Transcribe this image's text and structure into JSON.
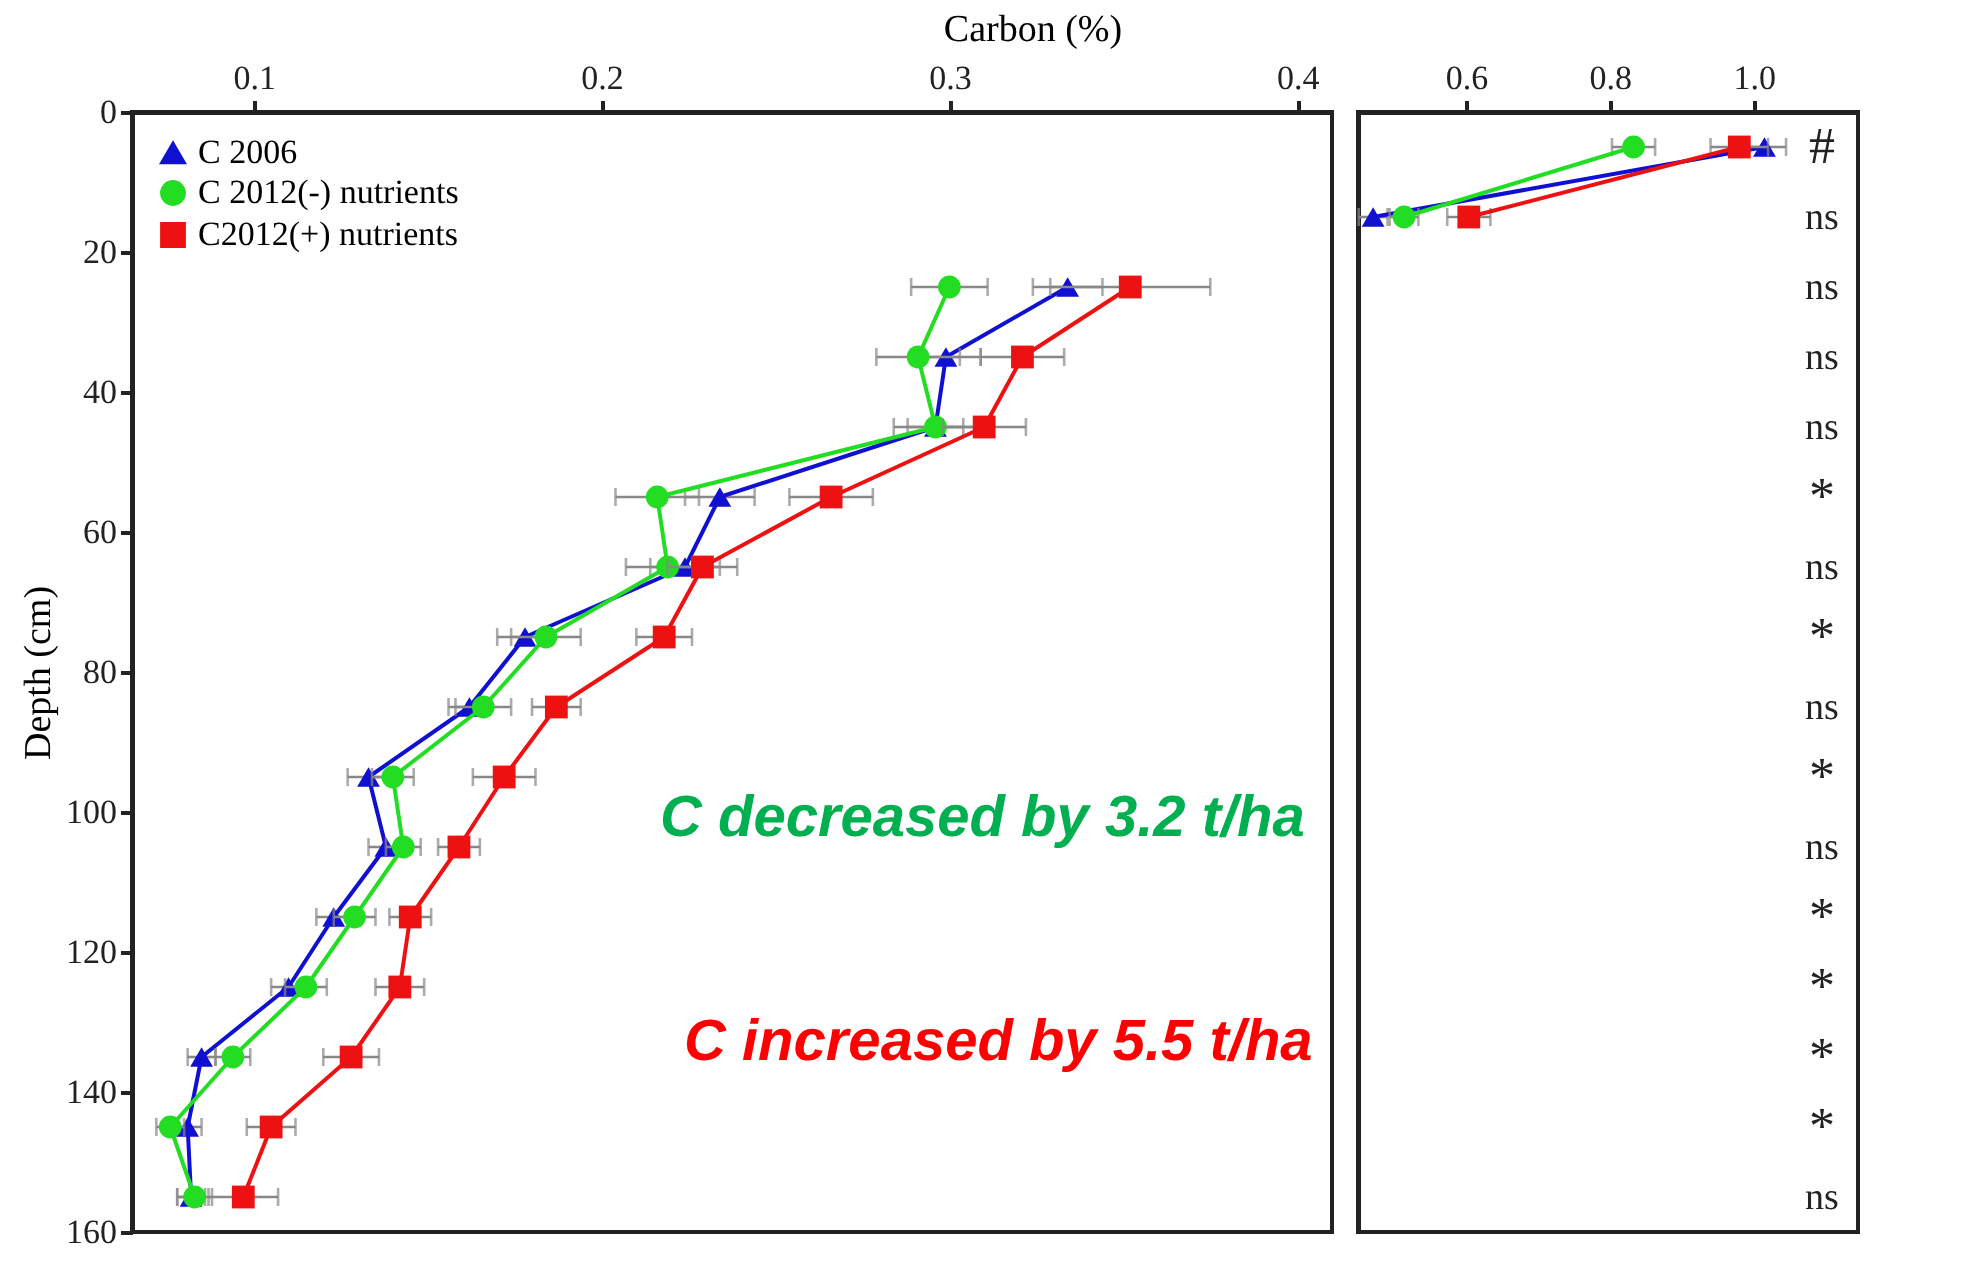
{
  "chart_data": [
    {
      "type": "line",
      "xlabel": "Carbon (%)",
      "ylabel": "Depth (cm)",
      "xlim": [
        0.065,
        0.41
      ],
      "xticks": [
        0.1,
        0.2,
        0.3,
        0.4
      ],
      "ylim": [
        160,
        0
      ],
      "yticks": [
        0,
        20,
        40,
        60,
        80,
        100,
        120,
        140,
        160
      ],
      "legend": "top left",
      "grid": false,
      "series": [
        {
          "name": "C 2006",
          "color": "#1010d0",
          "marker": "triangle",
          "x": [
            0.334,
            0.299,
            0.296,
            0.234,
            0.224,
            0.178,
            0.162,
            0.133,
            0.138,
            0.123,
            0.11,
            0.085,
            0.081,
            0.082
          ],
          "values": [
            25,
            35,
            45,
            55,
            65,
            75,
            85,
            95,
            105,
            115,
            125,
            135,
            145,
            155
          ],
          "xerrors": [
            0.01,
            0.01,
            0.008,
            0.01,
            0.01,
            0.008,
            0.006,
            0.006,
            0.005,
            0.005,
            0.005,
            0.004,
            0.004,
            0.004
          ]
        },
        {
          "name": "C 2012(-) nutrients",
          "color": "#22dd22",
          "marker": "circle",
          "x": [
            0.3,
            0.291,
            0.296,
            0.216,
            0.219,
            0.184,
            0.166,
            0.14,
            0.143,
            0.129,
            0.115,
            0.094,
            0.076,
            0.083
          ],
          "values": [
            25,
            35,
            45,
            55,
            65,
            75,
            85,
            95,
            105,
            115,
            125,
            135,
            145,
            155
          ],
          "xerrors": [
            0.011,
            0.012,
            0.012,
            0.012,
            0.012,
            0.01,
            0.008,
            0.006,
            0.005,
            0.006,
            0.006,
            0.005,
            0.004,
            0.005
          ]
        },
        {
          "name": "C2012(+) nutrients",
          "color": "#ee1111",
          "marker": "square",
          "x": [
            0.352,
            0.321,
            0.31,
            0.266,
            0.229,
            0.218,
            0.187,
            0.172,
            0.159,
            0.145,
            0.142,
            0.128,
            0.105,
            0.097
          ],
          "values": [
            25,
            35,
            45,
            55,
            65,
            75,
            85,
            95,
            105,
            115,
            125,
            135,
            145,
            155
          ],
          "xerrors": [
            0.023,
            0.012,
            0.012,
            0.012,
            0.01,
            0.008,
            0.007,
            0.009,
            0.006,
            0.006,
            0.007,
            0.008,
            0.007,
            0.01
          ]
        }
      ],
      "annotations": [
        "C decreased by 3.2 t/ha",
        "C increased by 5.5 t/ha"
      ]
    },
    {
      "type": "line",
      "xlim": [
        0.45,
        1.145
      ],
      "xticks": [
        0.6,
        0.8,
        {
          "value": 1,
          "label": "1.0"
        }
      ],
      "ylim": [
        160,
        0
      ],
      "yticks": [
        0,
        20,
        40,
        60,
        80,
        100,
        120,
        140,
        160
      ],
      "tick_labels": "x",
      "grid": false,
      "series": [
        {
          "color": "#1010d0",
          "marker": "triangle",
          "x": [
            1.015,
            0.471
          ],
          "values": [
            5,
            15
          ],
          "xerrors": [
            0.03,
            0.02
          ]
        },
        {
          "color": "#22dd22",
          "marker": "circle",
          "x": [
            0.833,
            0.514
          ],
          "values": [
            5,
            15
          ],
          "xerrors": [
            0.03,
            0.02
          ]
        },
        {
          "color": "#ee1111",
          "marker": "square",
          "x": [
            0.98,
            0.604
          ],
          "values": [
            5,
            15
          ],
          "xerrors": [
            0.04,
            0.03
          ]
        }
      ],
      "annotations": [
        "#",
        "ns",
        "ns",
        "ns",
        "ns",
        "*",
        "ns",
        "*",
        "ns",
        "*",
        "ns",
        "*",
        "*",
        "*",
        "*",
        "ns"
      ]
    }
  ]
}
